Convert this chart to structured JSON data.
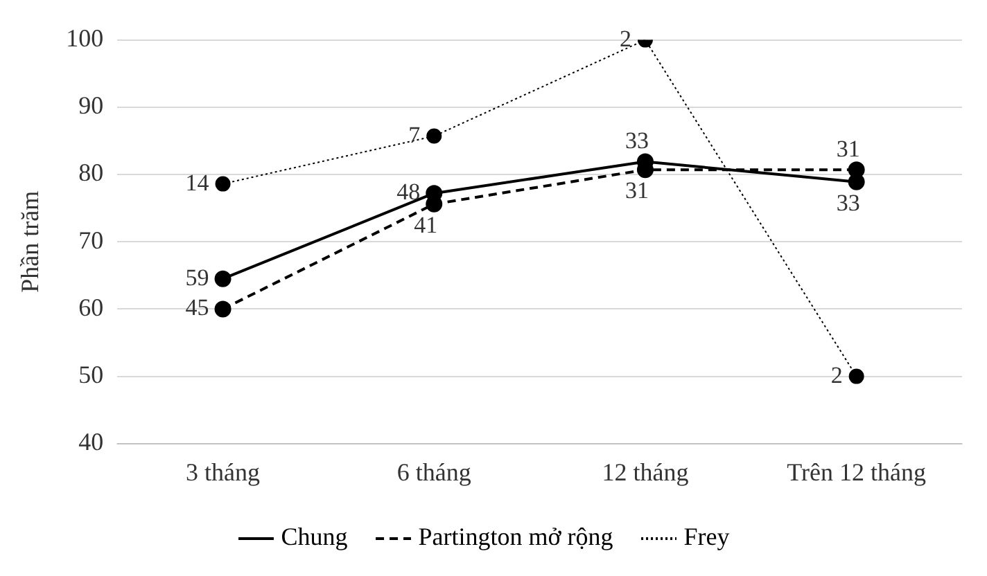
{
  "chart_data": {
    "type": "line",
    "ylabel": "Phần trăm",
    "categories": [
      "3 tháng",
      "6 tháng",
      "12 tháng",
      "Trên 12 tháng"
    ],
    "ylim": [
      40,
      100
    ],
    "yticks": [
      40,
      50,
      60,
      70,
      80,
      90,
      100
    ],
    "grid": "y",
    "legend": "bottom",
    "marker": "circle",
    "series": [
      {
        "name": "Chung",
        "color": "#000000",
        "line_style": "solid",
        "values": [
          64.5,
          77.2,
          81.9,
          78.9
        ]
      },
      {
        "name": "Partington mở rộng",
        "color": "#000000",
        "line_style": "dashed",
        "values": [
          60,
          75.6,
          80.7,
          80.7
        ]
      },
      {
        "name": "Frey",
        "color": "#000000",
        "line_style": "dotted",
        "values": [
          78.6,
          85.7,
          100,
          50
        ]
      }
    ],
    "annotations": [
      {
        "text": "59",
        "x": "3 tháng",
        "y": 64.5
      },
      {
        "text": "48",
        "x": "6 tháng",
        "y": 77.2
      },
      {
        "text": "33",
        "x": "12 tháng",
        "y": 81.9
      },
      {
        "text": "33",
        "x": "Trên 12 tháng",
        "y": 78.9
      },
      {
        "text": "45",
        "x": "3 tháng",
        "y": 60
      },
      {
        "text": "41",
        "x": "6 tháng",
        "y": 75.6
      },
      {
        "text": "31",
        "x": "12 tháng",
        "y": 80.7
      },
      {
        "text": "31",
        "x": "Trên 12 tháng",
        "y": 80.7
      },
      {
        "text": "14",
        "x": "3 tháng",
        "y": 78.6
      },
      {
        "text": "7",
        "x": "6 tháng",
        "y": 85.7
      },
      {
        "text": "2",
        "x": "12 tháng",
        "y": 100
      },
      {
        "text": "2",
        "x": "Trên 12 tháng",
        "y": 50
      }
    ]
  }
}
